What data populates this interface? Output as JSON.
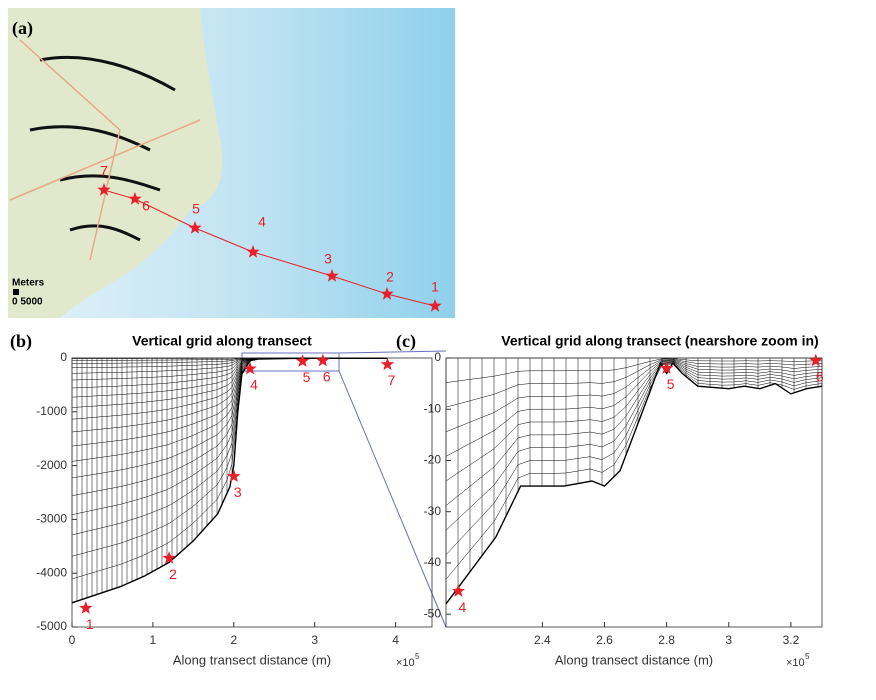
{
  "map": {
    "label": "(a)",
    "scale_label": "Meters",
    "scale_text": "0 5000",
    "station_labels": [
      "1",
      "2",
      "3",
      "4",
      "5",
      "6",
      "7"
    ]
  },
  "chart_data": [
    {
      "type": "line",
      "panel_label": "(b)",
      "title": "Vertical grid along transect",
      "xlabel": "Along transect distance (m)",
      "x_multiplier": "×10",
      "x_multiplier_exp": "5",
      "x": [
        0,
        0.3,
        0.6,
        0.9,
        1.2,
        1.5,
        1.8,
        1.95,
        2.0,
        2.05,
        2.1,
        2.2,
        2.3,
        2.8,
        3.3,
        3.9
      ],
      "values": [
        -4550,
        -4400,
        -4250,
        -4050,
        -3800,
        -3400,
        -2900,
        -2400,
        -2000,
        -1000,
        -300,
        -50,
        -20,
        -5,
        -5,
        -5
      ],
      "color": "#000000",
      "stations": {
        "x": [
          0.17,
          1.2,
          2.0,
          2.2,
          2.85,
          3.1,
          3.9
        ],
        "values": [
          -4650,
          -3720,
          -2200,
          -200,
          -60,
          -50,
          -120
        ],
        "labels": [
          "1",
          "2",
          "3",
          "4",
          "5",
          "6",
          "7"
        ],
        "color": "#e8202a"
      },
      "xlim": [
        0,
        4.45
      ],
      "ylim": [
        -5000,
        0
      ],
      "xticks": [
        0,
        1,
        2,
        3,
        4
      ],
      "yticks": [
        -5000,
        -4000,
        -3000,
        -2000,
        -1000,
        0
      ]
    },
    {
      "type": "line",
      "panel_label": "(c)",
      "title": "Vertical grid along transect (nearshore zoom in)",
      "xlabel": "Along transect distance (m)",
      "x_multiplier": "×10",
      "x_multiplier_exp": "5",
      "x": [
        2.09,
        2.25,
        2.33,
        2.47,
        2.56,
        2.6,
        2.65,
        2.7,
        2.75,
        2.78,
        2.8,
        2.82,
        2.85,
        2.9,
        3.0,
        3.05,
        3.1,
        3.15,
        3.2,
        3.25,
        3.3
      ],
      "values": [
        -48,
        -35,
        -25,
        -25,
        -24,
        -25,
        -22,
        -14,
        -6,
        -1,
        -3,
        -1,
        -3,
        -5.5,
        -6,
        -5.5,
        -6,
        -5,
        -7,
        -6,
        -5.5
      ],
      "color": "#000000",
      "stations": {
        "x": [
          2.13,
          2.8,
          3.28
        ],
        "values": [
          -45.5,
          -2,
          -0.5
        ],
        "labels": [
          "4",
          "5",
          "6"
        ],
        "color": "#e8202a"
      },
      "xlim": [
        2.09,
        3.3
      ],
      "ylim": [
        -52.5,
        0
      ],
      "xticks": [
        2.4,
        2.6,
        2.8,
        3,
        3.2
      ],
      "yticks": [
        -50,
        -40,
        -30,
        -20,
        -10,
        0
      ]
    }
  ]
}
